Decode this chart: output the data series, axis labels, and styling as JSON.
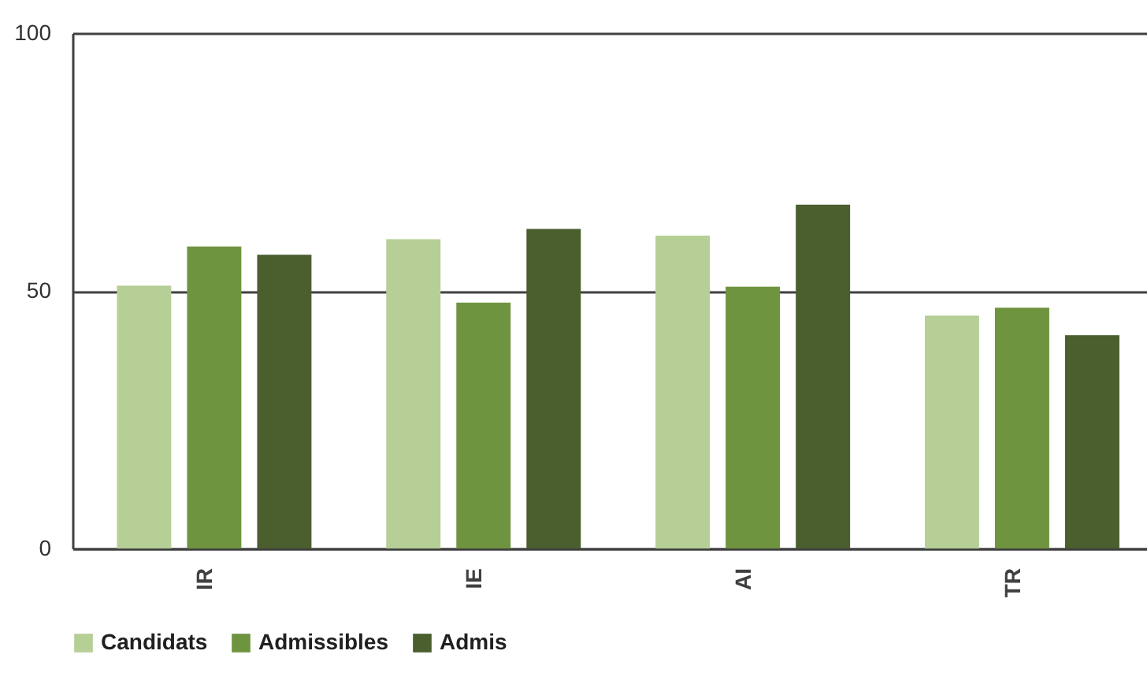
{
  "chart_data": {
    "type": "bar",
    "categories": [
      "IR",
      "IE",
      "AI",
      "TR"
    ],
    "series": [
      {
        "name": "Candidats",
        "color": "#b5cf96",
        "values": [
          51,
          60,
          60.7,
          45.2
        ]
      },
      {
        "name": "Admissibles",
        "color": "#6f9440",
        "values": [
          58.6,
          47.7,
          50.8,
          46.7
        ]
      },
      {
        "name": "Admis",
        "color": "#4a5e2e",
        "values": [
          57,
          62,
          66.7,
          41.4
        ]
      }
    ],
    "ylim": [
      0,
      100
    ],
    "yticks": [
      0,
      50,
      100
    ],
    "grid": "y",
    "legend": "bottom"
  }
}
